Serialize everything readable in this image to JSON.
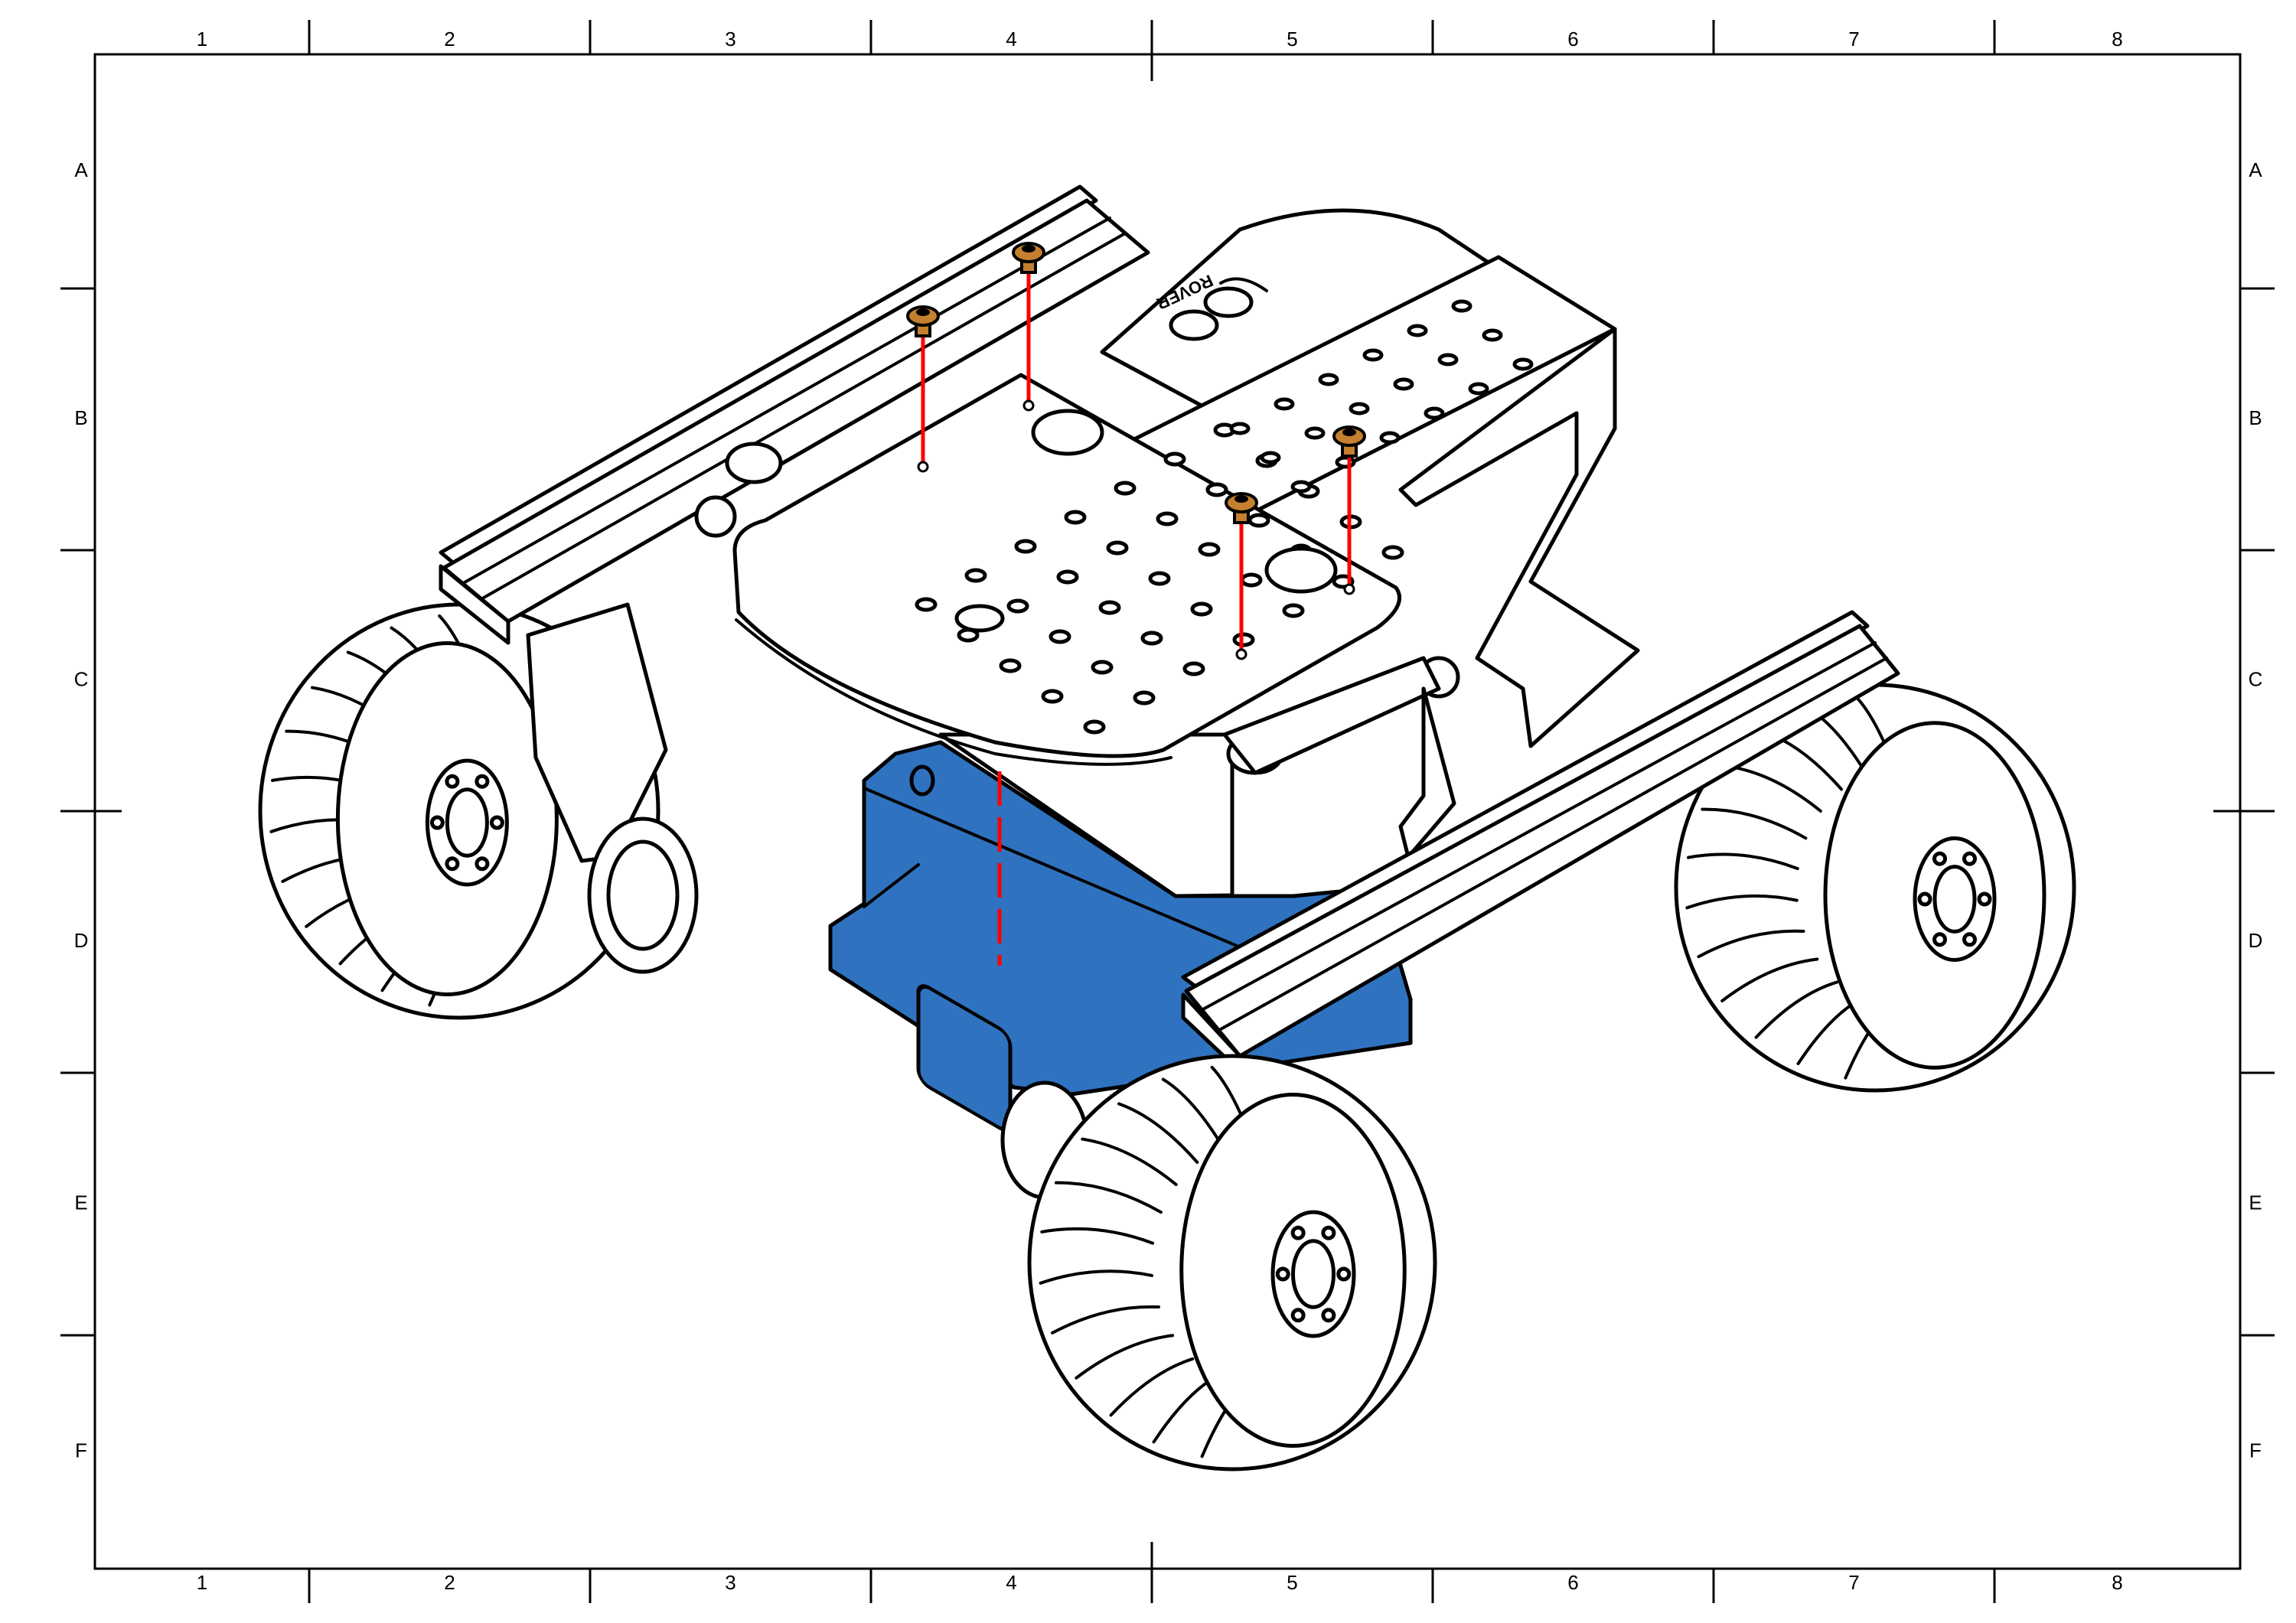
{
  "sheet": {
    "column_labels": [
      "1",
      "2",
      "3",
      "4",
      "5",
      "6",
      "7",
      "8"
    ],
    "row_labels": [
      "A",
      "B",
      "C",
      "D",
      "E",
      "F"
    ]
  },
  "drawing": {
    "logo_text": "ROVER",
    "colors": {
      "highlighted_part": "#2f72bf",
      "screws": "#c4802e",
      "assembly_lines": "#ff0000",
      "outline": "#000000"
    }
  }
}
